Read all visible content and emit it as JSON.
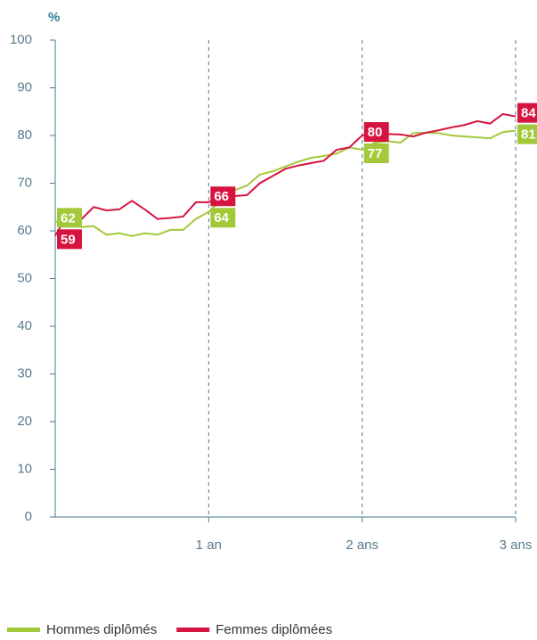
{
  "chart_data": {
    "type": "line",
    "y_label": "%",
    "x": [
      0,
      1,
      2,
      3,
      4,
      5,
      6,
      7,
      8,
      9,
      10,
      11,
      12,
      13,
      14,
      15,
      16,
      17,
      18,
      19,
      20,
      21,
      22,
      23,
      24,
      25,
      26,
      27,
      28,
      29,
      30,
      31,
      32,
      33,
      34,
      35,
      36
    ],
    "xlim": [
      0,
      36
    ],
    "xticks": [
      {
        "value": 12,
        "label": "1 an"
      },
      {
        "value": 24,
        "label": "2 ans"
      },
      {
        "value": 36,
        "label": "3 ans"
      }
    ],
    "ylim": [
      0,
      100
    ],
    "yticks": [
      0,
      10,
      20,
      30,
      40,
      50,
      60,
      70,
      80,
      90,
      100
    ],
    "grid": "x",
    "legend": "bottom",
    "series": [
      {
        "name": "Hommes diplômés",
        "color": "#a3c93a",
        "values": [
          62,
          61.3,
          60.8,
          61,
          59.2,
          59.5,
          58.9,
          59.5,
          59.2,
          60.2,
          60.2,
          62.5,
          64,
          66.5,
          68.5,
          69.5,
          71.8,
          72.5,
          73.5,
          74.5,
          75.3,
          75.7,
          76.2,
          77.5,
          77,
          78.5,
          78.8,
          78.5,
          80.5,
          80.6,
          80.5,
          80,
          79.8,
          79.6,
          79.4,
          80.7,
          81
        ],
        "value_labels": [
          "62",
          null,
          null,
          null,
          null,
          null,
          null,
          null,
          null,
          null,
          null,
          null,
          "64",
          null,
          null,
          null,
          null,
          null,
          null,
          null,
          null,
          null,
          null,
          null,
          "77",
          null,
          null,
          null,
          null,
          null,
          null,
          null,
          null,
          null,
          null,
          null,
          "81"
        ]
      },
      {
        "name": "Femmes diplômées",
        "color": "#d5153f",
        "values": [
          59,
          63.5,
          62.3,
          65,
          64.3,
          64.5,
          66.3,
          64.5,
          62.5,
          62.7,
          63,
          66,
          66,
          67.2,
          67.3,
          67.5,
          70,
          71.5,
          73,
          73.7,
          74.2,
          74.7,
          77,
          77.5,
          80,
          80.3,
          80.3,
          80.2,
          79.8,
          80.6,
          81.1,
          81.7,
          82.2,
          83,
          82.5,
          84.5,
          84
        ],
        "value_labels": [
          "59",
          null,
          null,
          null,
          null,
          null,
          null,
          null,
          null,
          null,
          null,
          null,
          "66",
          null,
          null,
          null,
          null,
          null,
          null,
          null,
          null,
          null,
          null,
          null,
          "80",
          null,
          null,
          null,
          null,
          null,
          null,
          null,
          null,
          null,
          null,
          null,
          "84"
        ]
      }
    ]
  }
}
